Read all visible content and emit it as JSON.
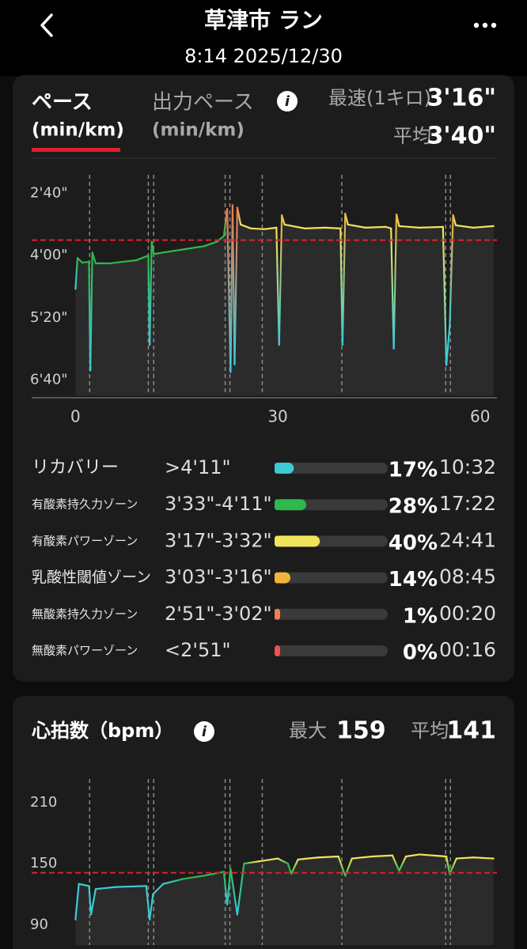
{
  "header": {
    "title": "草津市 ラン",
    "subtitle": "8:14 2025/12/30"
  },
  "pace_tabs": {
    "active": 0,
    "tabs": [
      {
        "title": "ペース",
        "unit": "(min/km)"
      },
      {
        "title": "出力ペース",
        "unit": "(min/km)"
      }
    ]
  },
  "chart_data": [
    {
      "type": "line",
      "fastest": {
        "label": "最速(1キロ)",
        "value": 196,
        "value_label": "3'16\""
      },
      "average": {
        "label": "平均",
        "value": 220,
        "value_label": "3'40\""
      },
      "x": [
        0,
        0.3,
        1,
        2,
        2.2,
        2.5,
        3,
        5,
        7,
        9,
        10.8,
        11,
        11.3,
        11.6,
        13,
        16,
        19,
        21,
        22,
        22.5,
        23,
        23.3,
        23.6,
        24,
        24.5,
        26,
        28,
        29.8,
        30.2,
        30.6,
        31,
        34,
        37,
        39.3,
        39.6,
        40,
        40.4,
        43,
        46,
        46.8,
        47.2,
        47.6,
        48,
        51,
        54.5,
        55,
        55.5,
        56,
        56.4,
        59,
        62
      ],
      "values": [
        283,
        243,
        249,
        248,
        388,
        236,
        250,
        250,
        248,
        246,
        240,
        355,
        222,
        238,
        236,
        232,
        228,
        222,
        215,
        180,
        390,
        175,
        380,
        178,
        200,
        205,
        206,
        204,
        355,
        188,
        200,
        205,
        204,
        205,
        355,
        186,
        200,
        204,
        203,
        205,
        360,
        187,
        202,
        204,
        203,
        381,
        330,
        188,
        201,
        204,
        202
      ],
      "point_colors": [
        "#3ccbd6",
        "#2fb84c",
        "#2fb84c",
        "#2fb84c",
        "#3ccbd6",
        "#2fb84c",
        "#2fb84c",
        "#2fb84c",
        "#2fb84c",
        "#2fb84c",
        "#2fb84c",
        "#3ccbd6",
        "#2fb84c",
        "#2fb84c",
        "#2fb84c",
        "#2fb84c",
        "#2fb84c",
        "#2fb84c",
        "#2fb84c",
        "#f07850",
        "#3ccbd6",
        "#f07850",
        "#3ccbd6",
        "#f07850",
        "#f2e45a",
        "#f2e45a",
        "#f2e45a",
        "#f2e45a",
        "#3ccbd6",
        "#f0b43c",
        "#f2e45a",
        "#f2e45a",
        "#f2e45a",
        "#f2e45a",
        "#3ccbd6",
        "#f0b43c",
        "#f2e45a",
        "#f2e45a",
        "#f2e45a",
        "#f2e45a",
        "#3ccbd6",
        "#f0b43c",
        "#f2e45a",
        "#f2e45a",
        "#f2e45a",
        "#3ccbd6",
        "#3ccbd6",
        "#f0b43c",
        "#f2e45a",
        "#f2e45a",
        "#f2e45a"
      ],
      "lap_markers": [
        2.1,
        10.8,
        11.6,
        22.2,
        22.9,
        27.7,
        39.5,
        54.9,
        55.6
      ],
      "xlim": [
        -6.5,
        62.5
      ],
      "xticks": [
        0,
        30,
        60
      ],
      "ylim": [
        140,
        420
      ],
      "y_inverted": true,
      "yticks": [
        {
          "value": 160,
          "label": "2'40\""
        },
        {
          "value": 240,
          "label": "4'00\""
        },
        {
          "value": 320,
          "label": "5'20\""
        },
        {
          "value": 400,
          "label": "6'40\""
        }
      ],
      "average_line_color": "#e0202a"
    },
    {
      "type": "line",
      "title": "心拍数（bpm）",
      "max": {
        "label": "最大",
        "value": 159
      },
      "average": {
        "label": "平均",
        "value": 141
      },
      "x": [
        0,
        0.5,
        2,
        2.3,
        3,
        6,
        10.5,
        11,
        11.5,
        13,
        16,
        19,
        22,
        22.5,
        23,
        24,
        25,
        27,
        30,
        31.5,
        32,
        33,
        36,
        39,
        40,
        41,
        44,
        47,
        48,
        49,
        51,
        55,
        55.5,
        56.5,
        59,
        62
      ],
      "values": [
        95,
        130,
        128,
        100,
        125,
        127,
        128,
        95,
        120,
        130,
        135,
        138,
        142,
        110,
        145,
        100,
        150,
        152,
        155,
        150,
        140,
        154,
        156,
        157,
        138,
        155,
        157,
        158,
        143,
        157,
        159,
        157,
        140,
        155,
        156,
        155
      ],
      "point_colors": [
        "#3ccbd6",
        "#3ccbd6",
        "#3ccbd6",
        "#3ccbd6",
        "#3ccbd6",
        "#3ccbd6",
        "#3ccbd6",
        "#3ccbd6",
        "#3ccbd6",
        "#3ccbd6",
        "#2fb84c",
        "#2fb84c",
        "#2fb84c",
        "#3ccbd6",
        "#2fb84c",
        "#3ccbd6",
        "#2fb84c",
        "#f2e45a",
        "#f2e45a",
        "#2fb84c",
        "#2fb84c",
        "#f2e45a",
        "#f2e45a",
        "#f2e45a",
        "#2fb84c",
        "#f2e45a",
        "#f2e45a",
        "#f2e45a",
        "#2fb84c",
        "#f2e45a",
        "#f2e45a",
        "#f2e45a",
        "#2fb84c",
        "#f2e45a",
        "#f2e45a",
        "#f2e45a"
      ],
      "lap_markers": [
        2.1,
        10.8,
        11.6,
        22.2,
        22.9,
        27.7,
        39.5,
        54.9,
        55.6
      ],
      "xlim": [
        -6.5,
        62.5
      ],
      "ylim": [
        70,
        230
      ],
      "y_inverted": false,
      "yticks": [
        90,
        150,
        210
      ],
      "average_line_color": "#e0202a"
    }
  ],
  "pace_zones": {
    "names": [
      "リカバリー",
      "有酸素持久力ゾーン",
      "有酸素パワーゾーン",
      "乳酸性閾値ゾーン",
      "無酸素持久力ゾーン",
      "無酸素パワーゾーン"
    ],
    "ranges": [
      ">4'11\"",
      "3'33\"-4'11\"",
      "3'17\"-3'32\"",
      "3'03\"-3'16\"",
      "2'51\"-3'02\"",
      "<2'51\""
    ],
    "values": [
      17,
      28,
      40,
      14,
      1,
      0
    ],
    "value_labels": [
      "17%",
      "28%",
      "40%",
      "14%",
      "1%",
      "0%"
    ],
    "times": [
      "10:32",
      "17:22",
      "24:41",
      "08:45",
      "00:20",
      "00:16"
    ],
    "colors": [
      "#3ccbd6",
      "#2fb84c",
      "#f2e45a",
      "#f0b43c",
      "#f08050",
      "#f05050"
    ]
  }
}
